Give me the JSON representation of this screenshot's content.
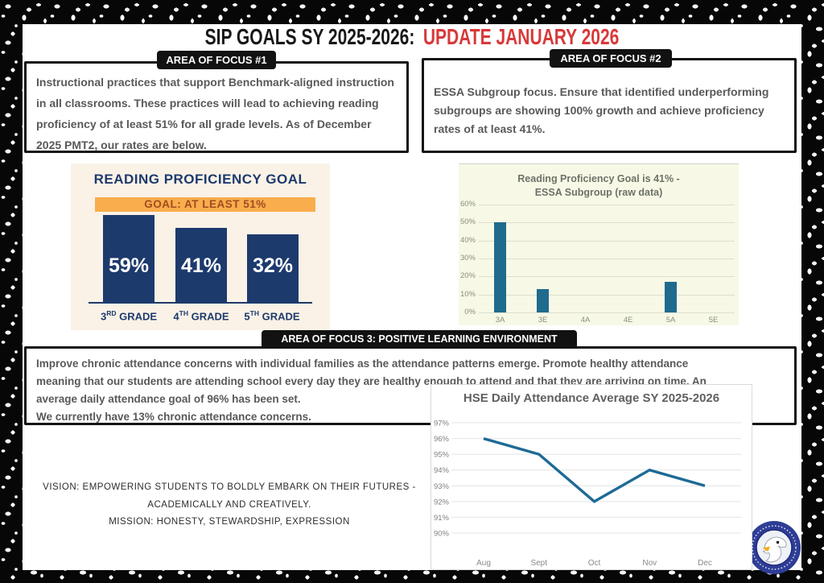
{
  "title": {
    "black": "SIP GOALS SY 2025-2026:",
    "red": "UPDATE JANUARY 2026"
  },
  "focus1": {
    "label": "AREA OF FOCUS #1",
    "body": "Instructional practices that support Benchmark-aligned instruction in all classrooms. These practices will lead to achieving reading proficiency of at least 51% for all grade levels.  As of December 2025 PMT2, our rates are below."
  },
  "focus2": {
    "label": "AREA OF FOCUS #2",
    "body": "ESSA Subgroup focus.  Ensure that identified underperforming subgroups are showing 100% growth and achieve proficiency rates of at least 41%."
  },
  "focus3": {
    "label": "AREA OF FOCUS 3: POSITIVE LEARNING ENVIRONMENT",
    "lines": [
      "Improve chronic attendance concerns with individual families as the attendance patterns emerge.  Promote healthy attendance",
      "meaning that our students are attending school every day they are healthy enough to attend and that they are arriving on time.  An",
      "average daily attendance goal of 96% has been set.",
      "We currently have 13% chronic attendance concerns."
    ]
  },
  "reading_goal": {
    "title": "READING PROFICIENCY GOAL",
    "banner": "GOAL: AT LEAST 51%",
    "display_values": [
      "59%",
      "41%",
      "32%"
    ],
    "grades": [
      {
        "num": "3",
        "ord": "RD",
        "word": "GRADE"
      },
      {
        "num": "4",
        "ord": "TH",
        "word": "GRADE"
      },
      {
        "num": "5",
        "ord": "TH",
        "word": "GRADE"
      }
    ]
  },
  "vision": {
    "line1": "VISION: EMPOWERING STUDENTS TO BOLDLY EMBARK ON THEIR FUTURES -",
    "line2": "ACADEMICALLY AND CREATIVELY.",
    "line3": "MISSION: HONESTY, STEWARDSHIP, EXPRESSION"
  },
  "colors": {
    "title_red": "#d8393a",
    "navy": "#1d3a6d",
    "banner_orange": "#f9ad4d",
    "banner_text": "#a34b1f",
    "essa_bar_teal": "#1f6b8e",
    "attendance_line_teal": "#1d6a96",
    "body_text_gray": "#58595b",
    "label_black": "#121212",
    "reading_bg_cream": "#faf2e7",
    "essa_bg_green": "#f7f9e6"
  },
  "chart_data": [
    {
      "type": "bar",
      "title": "READING PROFICIENCY GOAL",
      "subtitle": "GOAL: AT LEAST 51%",
      "categories": [
        "3rd Grade",
        "4th Grade",
        "5th Grade"
      ],
      "values": [
        59,
        41,
        32
      ],
      "unit": "%",
      "bar_color": "#1d3a6d"
    },
    {
      "type": "bar",
      "title": "Reading Proficiency Goal is 41% - ESSA Subgroup (raw data)",
      "title_line1": "Reading Proficiency Goal is 41% -",
      "title_line2": "ESSA Subgroup (raw data)",
      "categories": [
        "3A",
        "3E",
        "4A",
        "4E",
        "5A",
        "5E"
      ],
      "values": [
        50,
        13,
        0,
        0,
        17,
        0
      ],
      "ylim": [
        0,
        60
      ],
      "ytick_step": 10,
      "unit": "%",
      "bar_color": "#1f6b8e",
      "grid": true
    },
    {
      "type": "line",
      "title": "HSE Daily Attendance Average SY 2025-2026",
      "x": [
        "Aug",
        "Sept",
        "Oct",
        "Nov",
        "Dec"
      ],
      "values": [
        96,
        95,
        92,
        94,
        93
      ],
      "ylim": [
        90,
        97
      ],
      "unit": "%",
      "line_color": "#1d6a96",
      "grid": true
    }
  ]
}
